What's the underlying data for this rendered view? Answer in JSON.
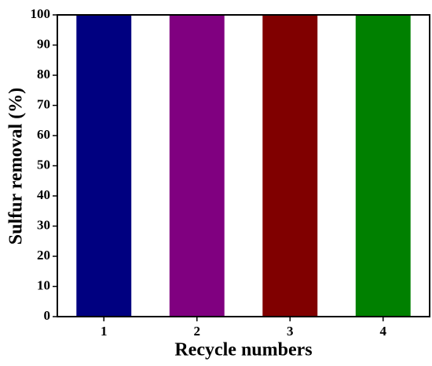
{
  "chart_data": {
    "type": "bar",
    "x_label": "Recycle numbers",
    "y_label": "Sulfur removal (%)",
    "categories": [
      "1",
      "2",
      "3",
      "4"
    ],
    "values": [
      100,
      100,
      100,
      100
    ],
    "colors": [
      "#000080",
      "#800080",
      "#800000",
      "#008000"
    ],
    "ylim": [
      0,
      100
    ],
    "yticks": [
      0,
      10,
      20,
      30,
      40,
      50,
      60,
      70,
      80,
      90,
      100
    ],
    "grid": false
  }
}
